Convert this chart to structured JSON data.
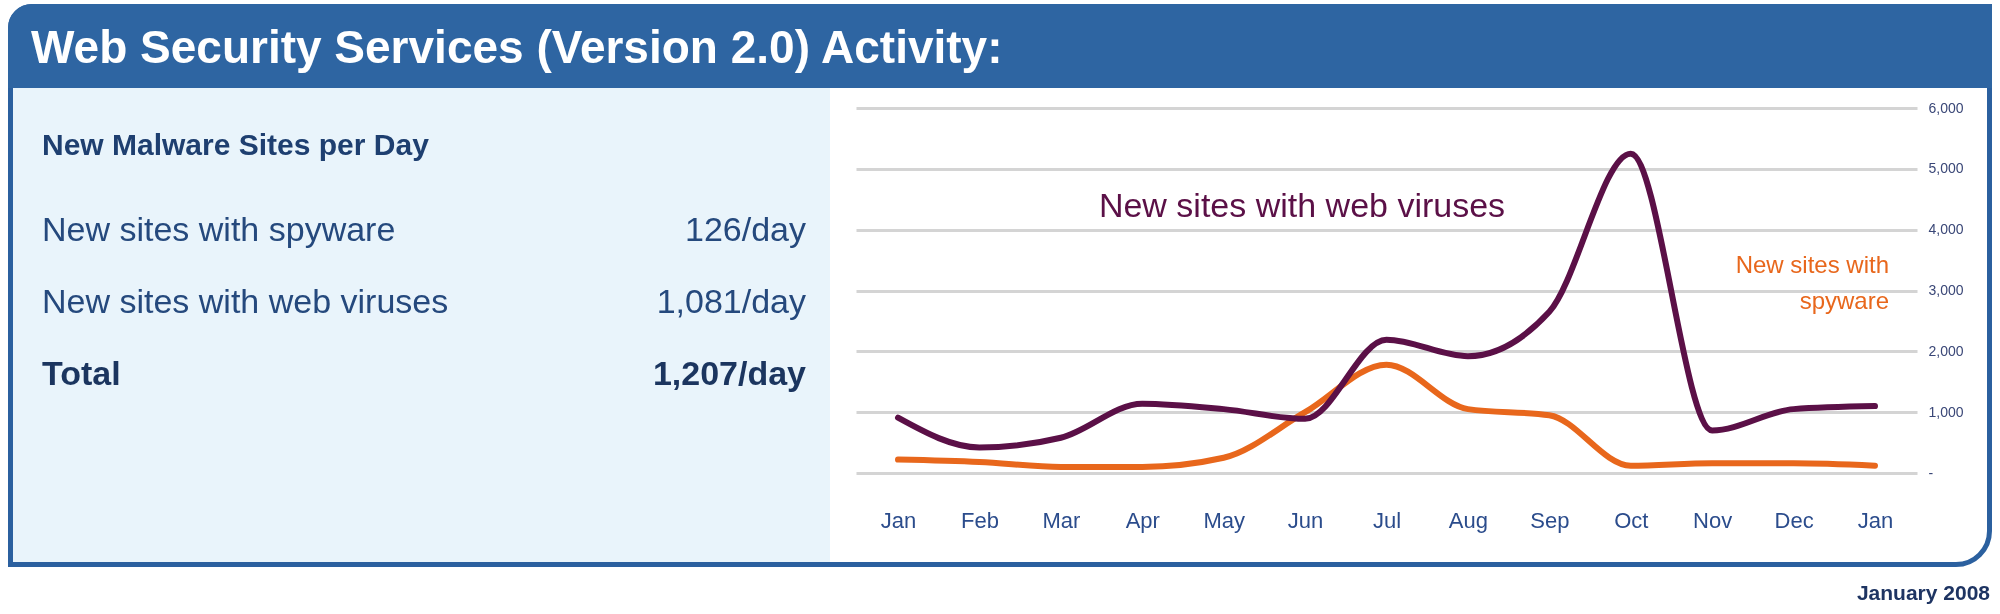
{
  "chart_data": [
    {
      "type": "other",
      "title": "Web Security Services (Version 2.0) Activity:",
      "subtitle": "New Malware Sites per Day",
      "annotations": [
        "New sites with spyware",
        "126/day",
        "New sites with web viruses",
        "1,081/day",
        "Total",
        "1,207/day"
      ]
    },
    {
      "type": "line",
      "categories": [
        "Jan",
        "Feb",
        "Mar",
        "Apr",
        "May",
        "Jun",
        "Jul",
        "Aug",
        "Sep",
        "Oct",
        "Nov",
        "Dec",
        "Jan"
      ],
      "series": [
        {
          "name": "New sites with spyware",
          "color": "#e8671c",
          "values": [
            220,
            180,
            100,
            100,
            250,
            1000,
            1780,
            1050,
            950,
            120,
            160,
            160,
            120
          ]
        },
        {
          "name": "New sites with web viruses",
          "color": "#5b1047",
          "values": [
            910,
            420,
            580,
            1140,
            1050,
            890,
            2190,
            1920,
            2650,
            5250,
            700,
            1050,
            1100
          ]
        }
      ],
      "ylim": [
        0,
        6000
      ],
      "yticks": [
        {
          "value": 0,
          "label": "-"
        },
        {
          "value": 1000,
          "label": "1,000"
        },
        {
          "value": 2000,
          "label": "2,000"
        },
        {
          "value": 3000,
          "label": "3,000"
        },
        {
          "value": 4000,
          "label": "4,000"
        },
        {
          "value": 5000,
          "label": "5,000"
        },
        {
          "value": 6000,
          "label": "6,000"
        }
      ],
      "grid": "y",
      "line_style": "solid",
      "annotations": [
        "January 2008"
      ]
    }
  ]
}
